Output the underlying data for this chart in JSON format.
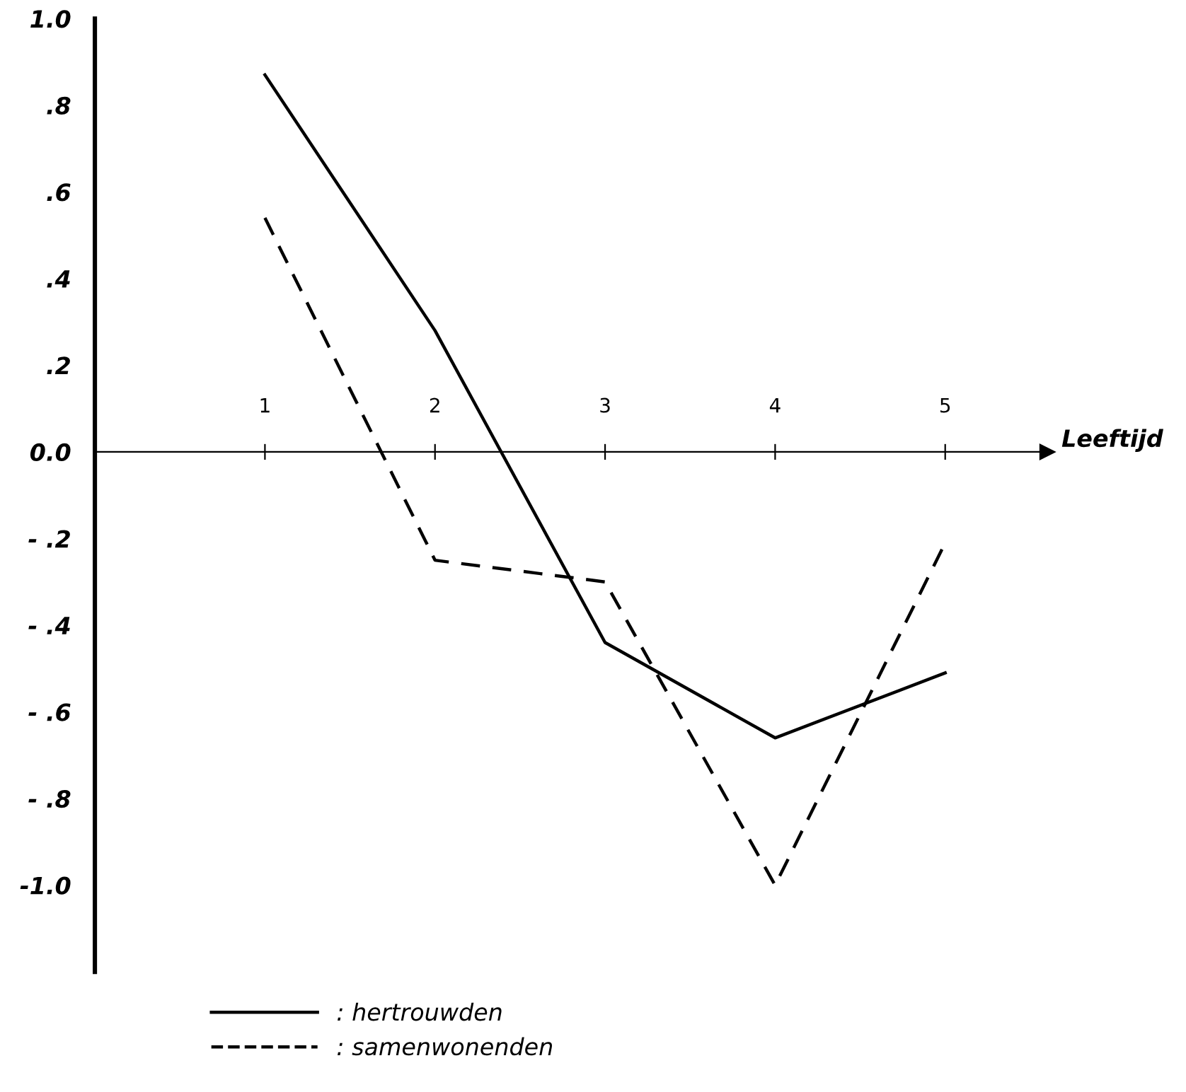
{
  "chart_data": {
    "type": "line",
    "xlabel": "Leeftijd",
    "categories": [
      "1",
      "2",
      "3",
      "4",
      "5"
    ],
    "series": [
      {
        "name": ": hertrouwden",
        "color": "#000000",
        "line_style": "solid",
        "values": [
          0.87,
          0.28,
          -0.44,
          -0.66,
          -0.51
        ]
      },
      {
        "name": ": samenwonenden",
        "color": "#000000",
        "line_style": "dashed",
        "values": [
          0.54,
          -0.25,
          -0.3,
          -1.0,
          -0.21
        ]
      }
    ],
    "ylim": [
      -1.2,
      1.0
    ],
    "yticks": [
      {
        "value": 1.0,
        "label": "1.0"
      },
      {
        "value": 0.8,
        "label": ".8"
      },
      {
        "value": 0.6,
        "label": ".6"
      },
      {
        "value": 0.4,
        "label": ".4"
      },
      {
        "value": 0.2,
        "label": ".2"
      },
      {
        "value": 0.0,
        "label": "0.0"
      },
      {
        "value": -0.2,
        "label": "- .2"
      },
      {
        "value": -0.4,
        "label": "- .4"
      },
      {
        "value": -0.6,
        "label": "- .6"
      },
      {
        "value": -0.8,
        "label": "- .8"
      },
      {
        "value": -1.0,
        "label": "-1.0"
      }
    ],
    "grid": false,
    "legend": "bottom",
    "marker": "none"
  }
}
